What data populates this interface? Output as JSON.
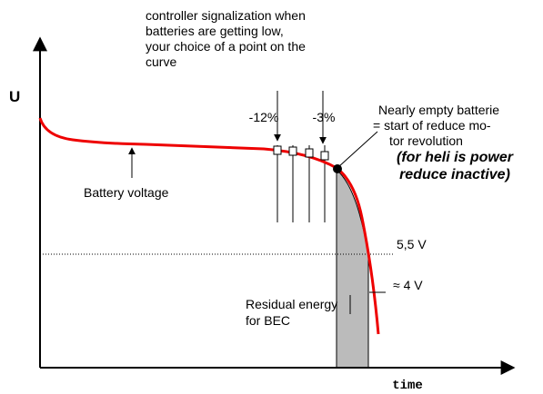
{
  "signal_note": {
    "lines": [
      "controller signalization when",
      "batteries are getting low,",
      "your choice of a point on the",
      "curve"
    ]
  },
  "axis_y_label": "U",
  "axis_x_label": "time",
  "marker_left": "-12%",
  "marker_right": "-3%",
  "empty_note": {
    "lines": [
      "Nearly empty batterie",
      "= start of reduce mo-",
      "tor revolution"
    ]
  },
  "heli_note": {
    "lines": [
      "(for heli is power",
      "reduce inactive)"
    ]
  },
  "curve_label": "Battery voltage",
  "level_high": "5,5 V",
  "level_low": "≈ 4 V",
  "residual_note": {
    "lines": [
      "Residual energy",
      "for BEC"
    ]
  }
}
